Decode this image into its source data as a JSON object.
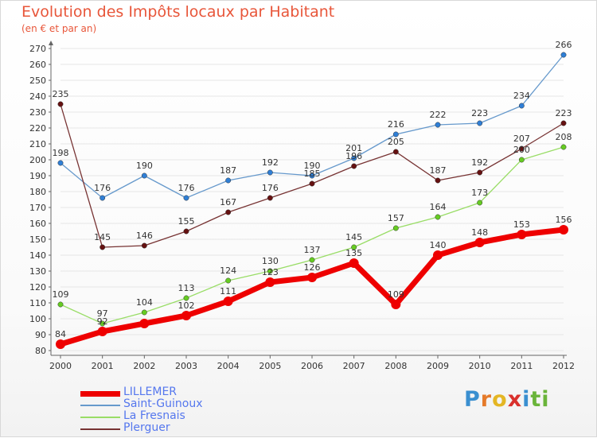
{
  "header": {
    "title": "Evolution des Impôts locaux par Habitant",
    "subtitle": "(en € et par an)"
  },
  "colors": {
    "title": "#e8563a",
    "legend_text": "#5577ee",
    "axis": "#666666",
    "tick_label": "#333333"
  },
  "logo": {
    "letters": [
      {
        "ch": "P",
        "color": "#3a8fd0"
      },
      {
        "ch": "r",
        "color": "#e57a2a"
      },
      {
        "ch": "o",
        "color": "#e4b624"
      },
      {
        "ch": "x",
        "color": "#d9302c"
      },
      {
        "ch": "i",
        "color": "#3a8fd0"
      },
      {
        "ch": "t",
        "color": "#6ab43a"
      },
      {
        "ch": "i",
        "color": "#6ab43a"
      }
    ]
  },
  "chart_data": {
    "type": "line",
    "title": "Evolution des Impôts locaux par Habitant",
    "subtitle": "(en € et par an)",
    "xlabel": "",
    "ylabel": "",
    "x": [
      "2000",
      "2001",
      "2002",
      "2003",
      "2004",
      "2005",
      "2006",
      "2007",
      "2008",
      "2009",
      "2010",
      "2011",
      "2012"
    ],
    "ylim": [
      80,
      270
    ],
    "yticks": [
      80,
      90,
      100,
      110,
      120,
      130,
      140,
      150,
      160,
      170,
      180,
      190,
      200,
      210,
      220,
      230,
      240,
      250,
      260,
      270
    ],
    "grid": true,
    "legend_position": "bottom-left",
    "series": [
      {
        "name": "LILLEMER",
        "color": "#ee0000",
        "marker": "#ee0000",
        "width": "thick",
        "values": [
          84,
          92,
          97,
          102,
          111,
          123,
          126,
          135,
          109,
          140,
          148,
          153,
          156
        ],
        "labels": [
          "84",
          "92",
          "",
          "102",
          "111",
          "123",
          "126",
          "135",
          "109",
          "140",
          "148",
          "153",
          "156"
        ]
      },
      {
        "name": "Saint-Guinoux",
        "color": "#6699cc",
        "marker": "#2f7fd6",
        "width": "thin",
        "values": [
          198,
          176,
          190,
          176,
          187,
          192,
          190,
          201,
          216,
          222,
          223,
          234,
          266
        ],
        "labels": [
          "198",
          "176",
          "190",
          "176",
          "187",
          "192",
          "190",
          "201",
          "216",
          "222",
          "223",
          "234",
          "266"
        ]
      },
      {
        "name": "La Fresnais",
        "color": "#99dd66",
        "marker": "#66cc22",
        "width": "thin",
        "values": [
          109,
          97,
          104,
          113,
          124,
          130,
          137,
          145,
          157,
          164,
          173,
          200,
          208
        ],
        "labels": [
          "109",
          "97",
          "104",
          "113",
          "124",
          "130",
          "137",
          "145",
          "157",
          "164",
          "173",
          "200",
          "208"
        ]
      },
      {
        "name": "Plerguer",
        "color": "#773333",
        "marker": "#661111",
        "width": "thin",
        "values": [
          235,
          145,
          146,
          155,
          167,
          176,
          185,
          196,
          205,
          187,
          192,
          207,
          223
        ],
        "labels": [
          "235",
          "145",
          "146",
          "155",
          "167",
          "176",
          "185",
          "196",
          "205",
          "187",
          "192",
          "207",
          "223"
        ]
      }
    ]
  }
}
